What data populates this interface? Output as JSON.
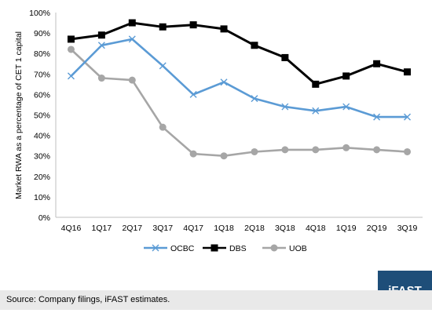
{
  "chart_data": {
    "type": "line",
    "categories": [
      "4Q16",
      "1Q17",
      "2Q17",
      "3Q17",
      "4Q17",
      "1Q18",
      "2Q18",
      "3Q18",
      "4Q18",
      "1Q19",
      "2Q19",
      "3Q19"
    ],
    "ylabel": "Market RWA as a percentage of CET 1 capital",
    "ylim": [
      0,
      100
    ],
    "yticks": [
      "0%",
      "10%",
      "20%",
      "30%",
      "40%",
      "50%",
      "60%",
      "70%",
      "80%",
      "90%",
      "100%"
    ],
    "grid": false,
    "legend": "bottom",
    "series": [
      {
        "name": "OCBC",
        "color": "#5b9bd5",
        "marker": "x",
        "values": [
          69,
          84,
          87,
          74,
          60,
          66,
          58,
          54,
          52,
          54,
          49,
          49
        ]
      },
      {
        "name": "DBS",
        "color": "#000000",
        "marker": "square",
        "values": [
          87,
          89,
          95,
          93,
          94,
          92,
          84,
          78,
          65,
          69,
          75,
          71
        ]
      },
      {
        "name": "UOB",
        "color": "#a6a6a6",
        "marker": "circle",
        "values": [
          82,
          68,
          67,
          44,
          31,
          30,
          32,
          33,
          33,
          34,
          33,
          32
        ]
      }
    ]
  },
  "footer": {
    "source": "Source: Company filings, iFAST estimates.",
    "logo_text": "iFAST",
    "logo_color": "#1e4e79"
  }
}
